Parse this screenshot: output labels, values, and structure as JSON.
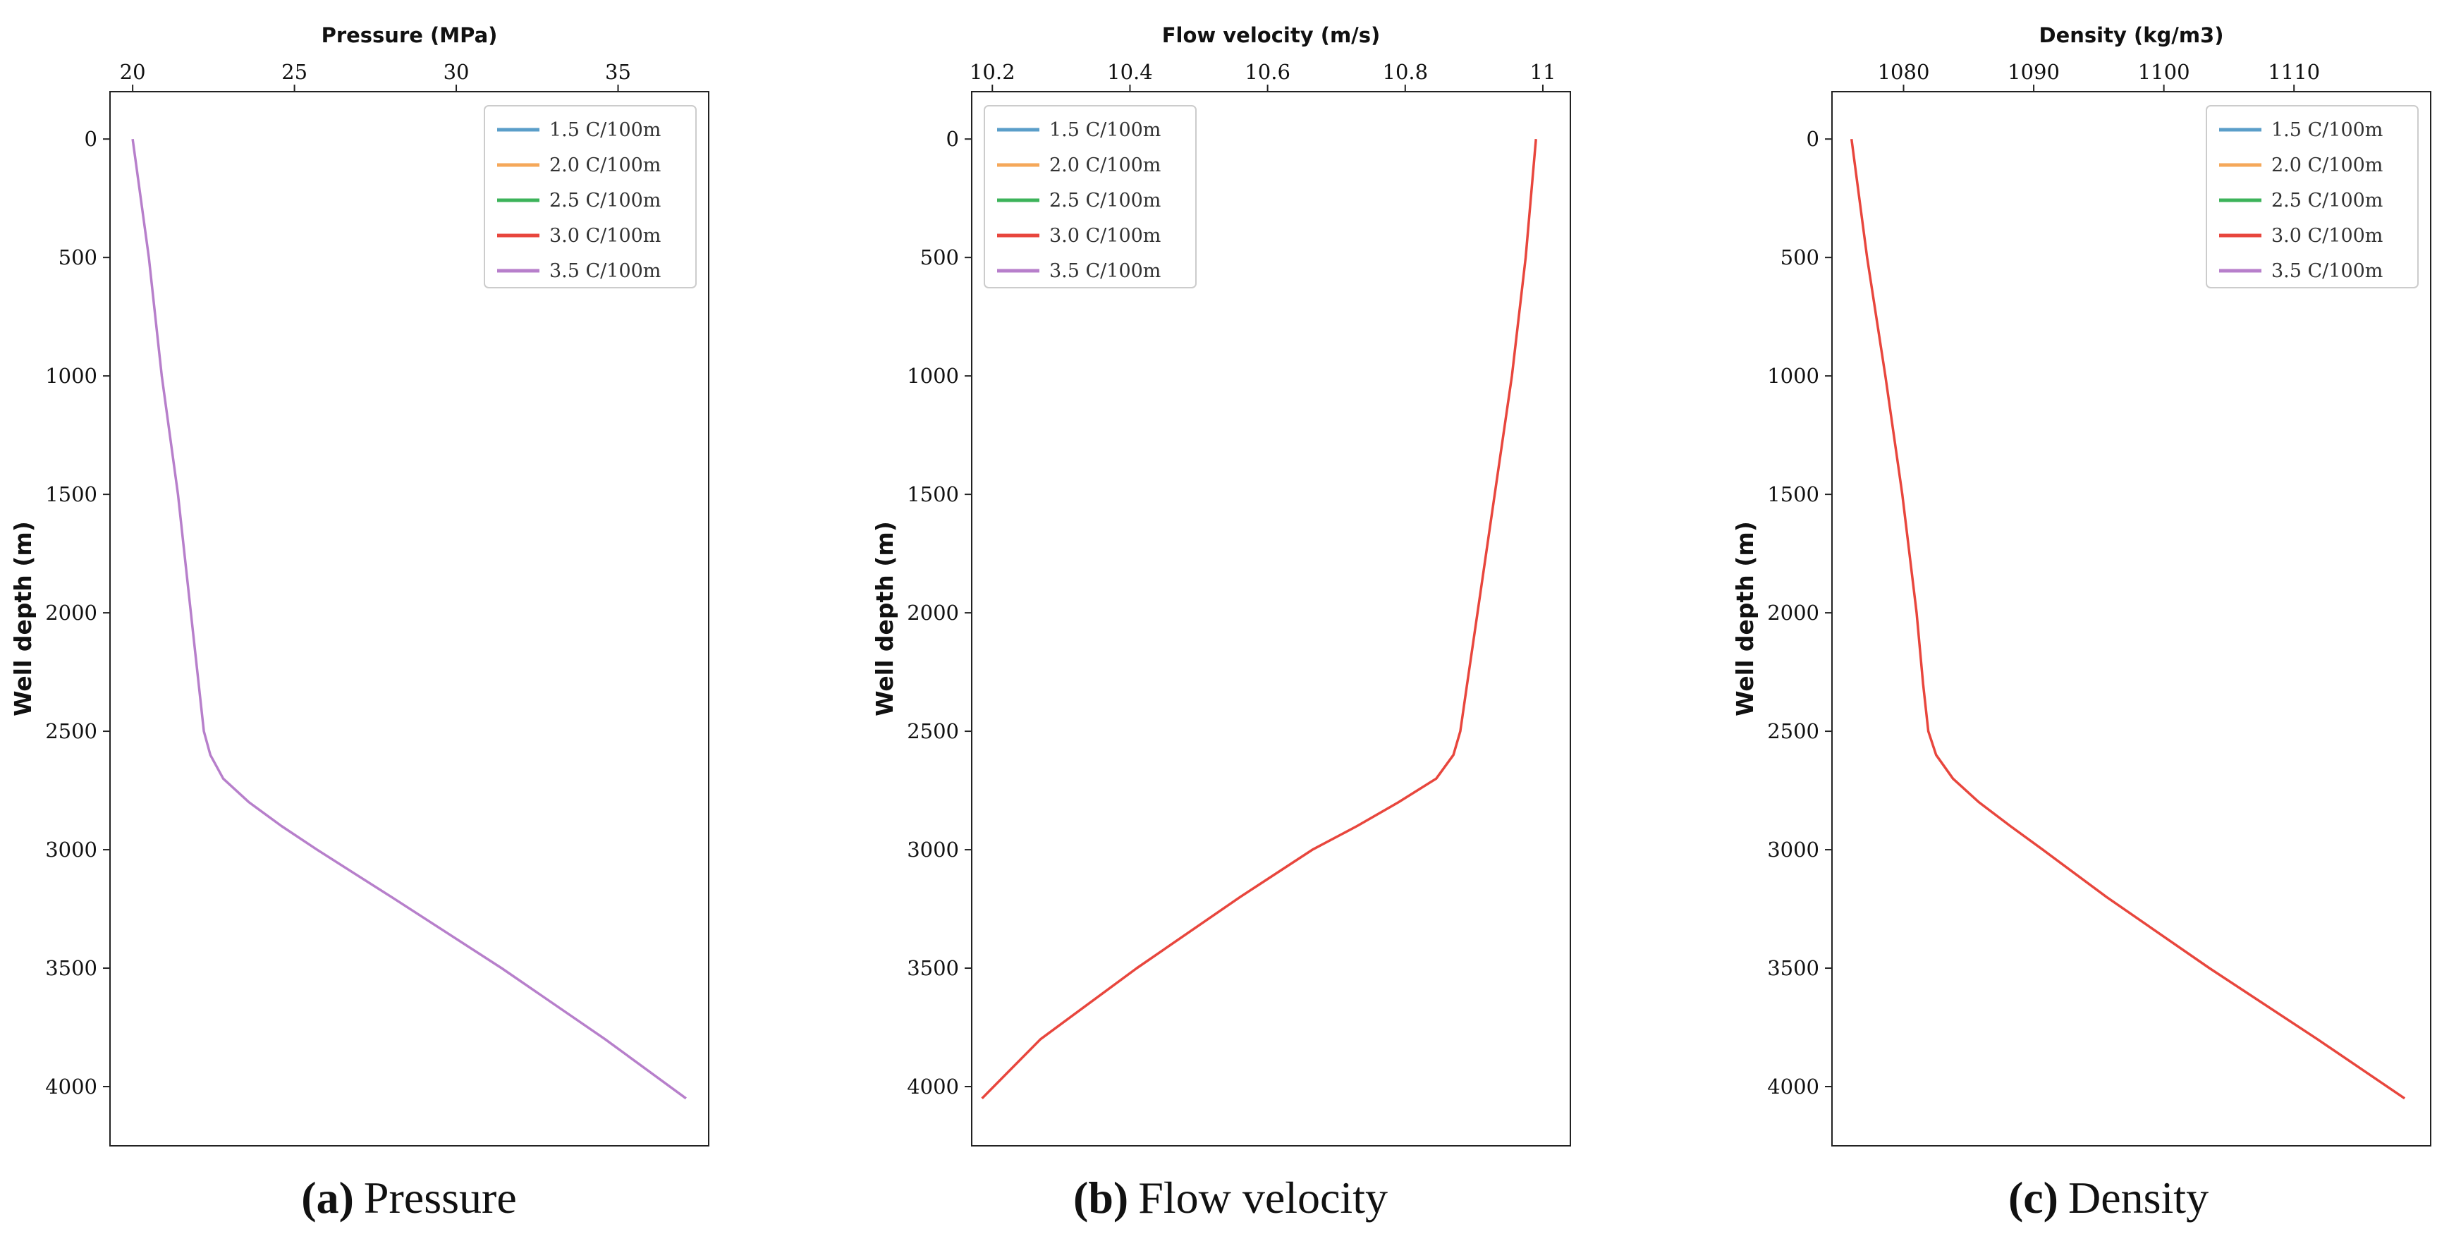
{
  "chart_data": [
    {
      "type": "line",
      "title": "Pressure (MPa)",
      "xlabel": "Pressure (MPa)",
      "ylabel": "Well depth (m)",
      "xlim": [
        19.3,
        37.8
      ],
      "ylim": [
        4250,
        -200
      ],
      "xticks": [
        20,
        25,
        30,
        35
      ],
      "yticks": [
        0,
        500,
        1000,
        1500,
        2000,
        2500,
        3000,
        3500,
        4000
      ],
      "caption_letter": "(a)",
      "caption_text": "Pressure",
      "legend_position": "top-right",
      "visible_series": "3.5 C/100m",
      "series": [
        {
          "name": "1.5 C/100m",
          "color": "#5a9ec9"
        },
        {
          "name": "2.0 C/100m",
          "color": "#f5a85a"
        },
        {
          "name": "2.5 C/100m",
          "color": "#3cb35a"
        },
        {
          "name": "3.0 C/100m",
          "color": "#e8463d"
        },
        {
          "name": "3.5 C/100m",
          "color": "#b77fcb"
        }
      ],
      "curve": {
        "depth": [
          0,
          500,
          1000,
          1500,
          2000,
          2500,
          2600,
          2700,
          2800,
          2900,
          3000,
          3200,
          3500,
          3800,
          4050
        ],
        "value": [
          20.0,
          20.5,
          20.9,
          21.4,
          21.8,
          22.2,
          22.4,
          22.8,
          23.6,
          24.6,
          25.7,
          28.0,
          31.4,
          34.6,
          37.1
        ]
      }
    },
    {
      "type": "line",
      "title": "Flow velocity (m/s)",
      "xlabel": "Flow velocity (m/s)",
      "ylabel": "Well depth (m)",
      "xlim": [
        10.17,
        11.04
      ],
      "ylim": [
        4250,
        -200
      ],
      "xticks": [
        10.2,
        10.4,
        10.6,
        10.8,
        11.0
      ],
      "yticks": [
        0,
        500,
        1000,
        1500,
        2000,
        2500,
        3000,
        3500,
        4000
      ],
      "caption_letter": "(b)",
      "caption_text": "Flow velocity",
      "legend_position": "top-left",
      "visible_series": "3.0 C/100m",
      "series": [
        {
          "name": "1.5 C/100m",
          "color": "#5a9ec9"
        },
        {
          "name": "2.0 C/100m",
          "color": "#f5a85a"
        },
        {
          "name": "2.5 C/100m",
          "color": "#3cb35a"
        },
        {
          "name": "3.0 C/100m",
          "color": "#e8463d"
        },
        {
          "name": "3.5 C/100m",
          "color": "#b77fcb"
        }
      ],
      "curve": {
        "depth": [
          0,
          500,
          1000,
          1500,
          2000,
          2300,
          2500,
          2600,
          2700,
          2800,
          2900,
          3000,
          3200,
          3500,
          3800,
          4050
        ],
        "value": [
          10.99,
          10.975,
          10.955,
          10.93,
          10.905,
          10.89,
          10.88,
          10.87,
          10.845,
          10.79,
          10.73,
          10.665,
          10.56,
          10.41,
          10.27,
          10.185
        ]
      }
    },
    {
      "type": "line",
      "title": "Density (kg/m3)",
      "xlabel": "Density (kg/m3)",
      "ylabel": "Well depth (m)",
      "xlim": [
        1074.5,
        1120.5
      ],
      "ylim": [
        4250,
        -200
      ],
      "xticks": [
        1080,
        1090,
        1100,
        1110
      ],
      "yticks": [
        0,
        500,
        1000,
        1500,
        2000,
        2500,
        3000,
        3500,
        4000
      ],
      "caption_letter": "(c)",
      "caption_text": "Density",
      "legend_position": "top-right",
      "visible_series": "3.0 C/100m",
      "series": [
        {
          "name": "1.5 C/100m",
          "color": "#5a9ec9"
        },
        {
          "name": "2.0 C/100m",
          "color": "#f5a85a"
        },
        {
          "name": "2.5 C/100m",
          "color": "#3cb35a"
        },
        {
          "name": "3.0 C/100m",
          "color": "#e8463d"
        },
        {
          "name": "3.5 C/100m",
          "color": "#b77fcb"
        }
      ],
      "curve": {
        "depth": [
          0,
          500,
          1000,
          1500,
          2000,
          2300,
          2500,
          2600,
          2700,
          2800,
          2900,
          3000,
          3200,
          3500,
          3800,
          4050
        ],
        "value": [
          1076.0,
          1077.2,
          1078.6,
          1079.9,
          1081.0,
          1081.5,
          1081.9,
          1082.5,
          1083.8,
          1085.8,
          1088.2,
          1090.7,
          1095.6,
          1103.5,
          1111.8,
          1118.5
        ]
      }
    }
  ]
}
